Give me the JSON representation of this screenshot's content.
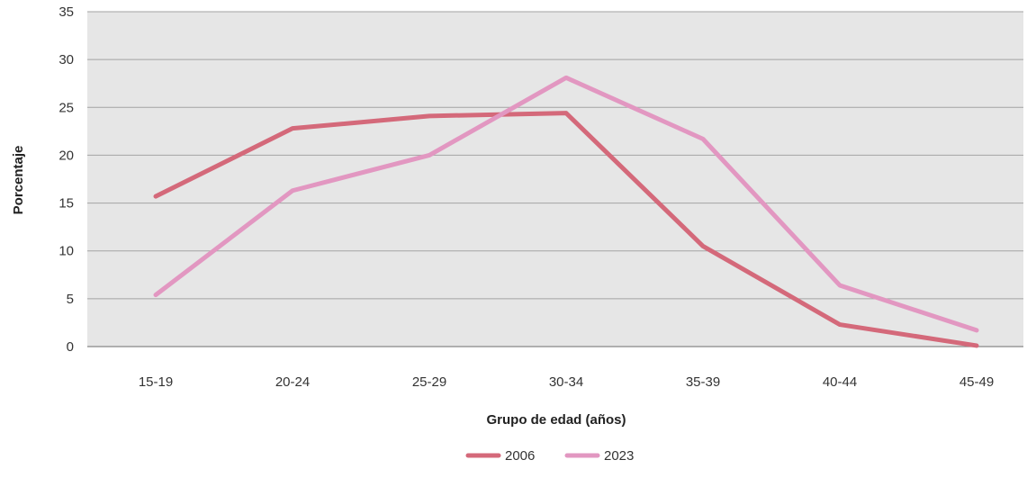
{
  "chart_data": {
    "type": "line",
    "title": "",
    "xlabel": "Grupo de edad (años)",
    "ylabel": "Porcentaje",
    "categories": [
      "15-19",
      "20-24",
      "25-29",
      "30-34",
      "35-39",
      "40-44",
      "45-49"
    ],
    "ylim": [
      0,
      35
    ],
    "yticks": [
      "0",
      "5",
      "10",
      "15",
      "20",
      "25",
      "30",
      "35"
    ],
    "grid": "horizontal",
    "legend_position": "bottom-center",
    "series": [
      {
        "name": "2006",
        "color": "#d4697a",
        "values": [
          15.7,
          22.8,
          24.1,
          24.4,
          10.5,
          2.3,
          0.1
        ]
      },
      {
        "name": "2023",
        "color": "#e297c1",
        "values": [
          5.4,
          16.3,
          20.0,
          28.1,
          21.7,
          6.4,
          1.7
        ]
      }
    ]
  },
  "colors": {
    "plot_background": "#e6e6e6",
    "gridline": "#a3a3a3",
    "axis_line": "#888888"
  }
}
